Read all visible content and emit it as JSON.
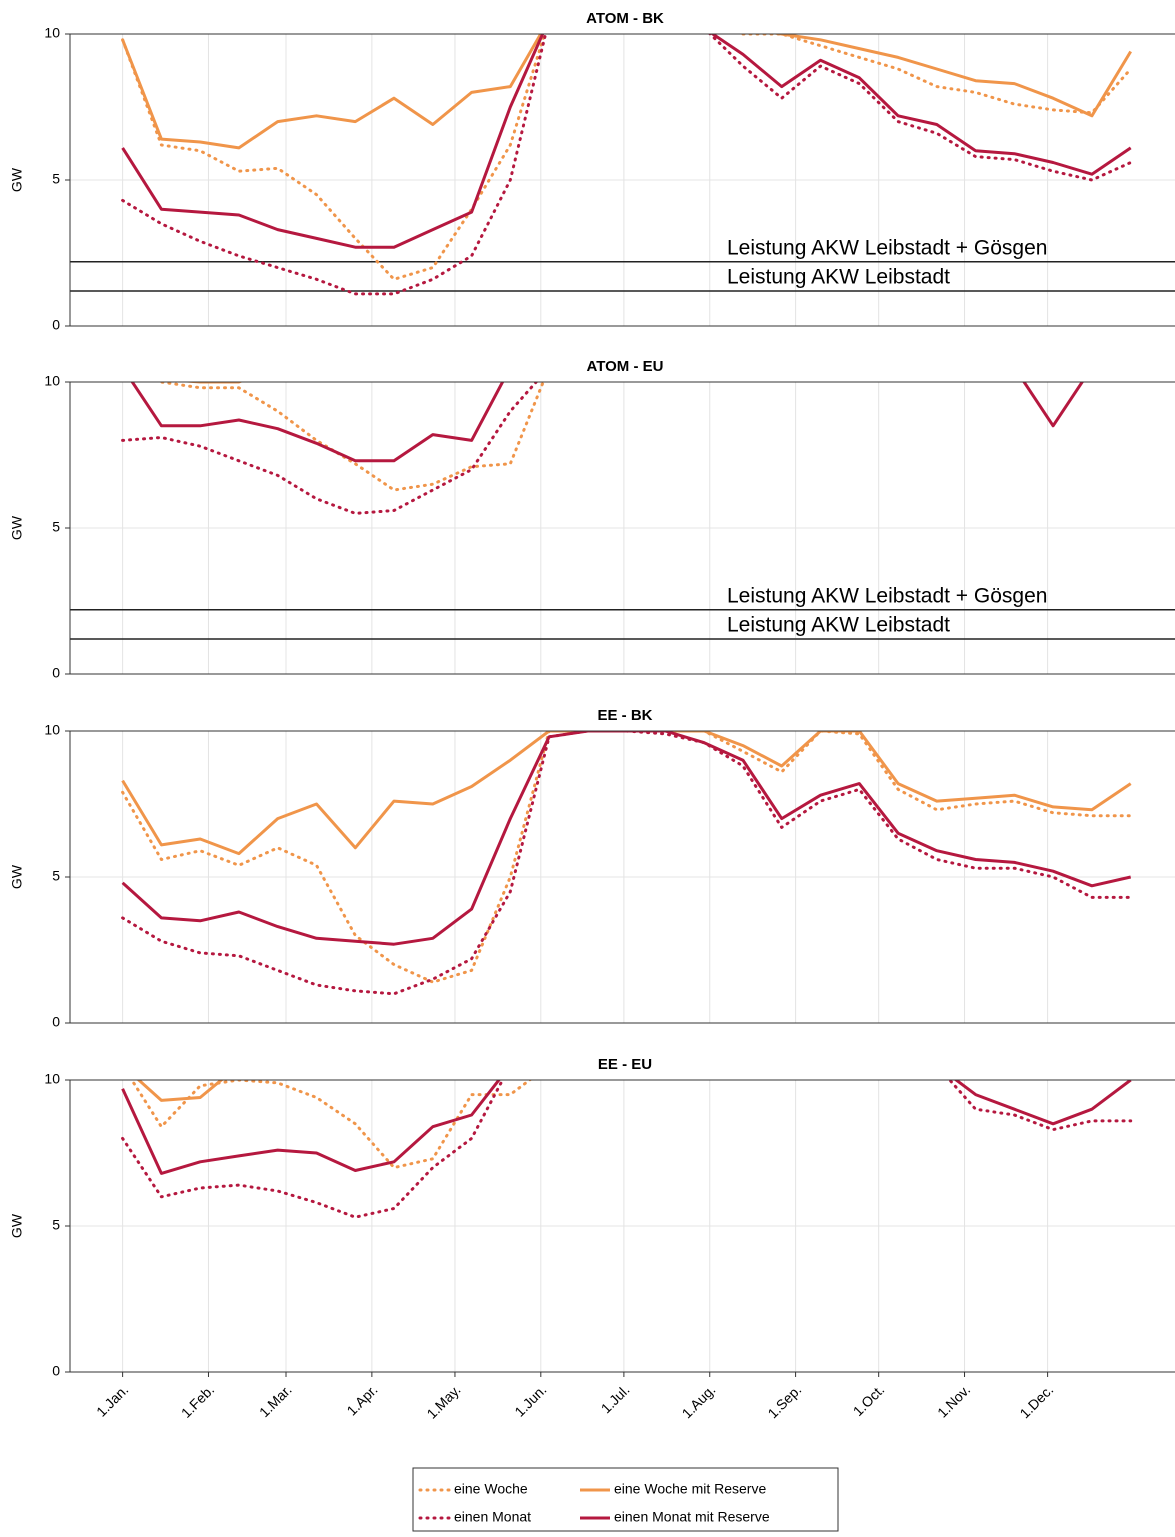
{
  "chart_data": [
    {
      "type": "line",
      "title": "ATOM - BK",
      "ylabel": "GW",
      "grid": true,
      "x": [
        0,
        14,
        28,
        42,
        56,
        70,
        84,
        98,
        112,
        126,
        140,
        154,
        168,
        182,
        196,
        210,
        224,
        238,
        252,
        266,
        280,
        294,
        308,
        322,
        336,
        350,
        364
      ],
      "xlim": [
        -19,
        380
      ],
      "ylim": [
        0,
        10
      ],
      "yticks": [
        0,
        5,
        10
      ],
      "reference_lines": [
        {
          "value": 2.2,
          "label": "Leistung AKW Leibstadt + Gösgen"
        },
        {
          "value": 1.2,
          "label": "Leistung AKW Leibstadt"
        }
      ],
      "series": [
        {
          "color": "#f0954a",
          "style": "dotted",
          "values": [
            9.8,
            6.2,
            6.0,
            5.3,
            5.4,
            4.5,
            3.0,
            1.6,
            2.0,
            4.0,
            6.2,
            10.5,
            null,
            null,
            null,
            null,
            10.0,
            10.0,
            9.6,
            9.2,
            8.8,
            8.2,
            8.0,
            7.6,
            7.4,
            7.3,
            8.8
          ]
        },
        {
          "color": "#f0954a",
          "style": "solid",
          "values": [
            9.8,
            6.4,
            6.3,
            6.1,
            7.0,
            7.2,
            7.0,
            7.8,
            6.9,
            8.0,
            8.2,
            10.5,
            null,
            null,
            null,
            null,
            10.2,
            10.0,
            9.8,
            9.5,
            9.2,
            8.8,
            8.4,
            8.3,
            7.8,
            7.2,
            9.4
          ]
        },
        {
          "color": "#b5183f",
          "style": "dotted",
          "values": [
            4.3,
            3.5,
            2.9,
            2.4,
            2.0,
            1.6,
            1.1,
            1.1,
            1.6,
            2.4,
            5.0,
            10.5,
            null,
            null,
            null,
            10.2,
            8.9,
            7.8,
            8.9,
            8.3,
            7.0,
            6.6,
            5.8,
            5.7,
            5.3,
            5.0,
            5.6
          ]
        },
        {
          "color": "#b5183f",
          "style": "solid",
          "values": [
            6.1,
            4.0,
            3.9,
            3.8,
            3.3,
            3.0,
            2.7,
            2.7,
            3.3,
            3.9,
            7.5,
            10.5,
            null,
            null,
            null,
            10.2,
            9.3,
            8.2,
            9.1,
            8.5,
            7.2,
            6.9,
            6.0,
            5.9,
            5.6,
            5.2,
            6.1
          ]
        }
      ]
    },
    {
      "type": "line",
      "title": "ATOM - EU",
      "ylabel": "GW",
      "grid": true,
      "x": [
        0,
        14,
        28,
        42,
        56,
        70,
        84,
        98,
        112,
        126,
        140,
        154,
        168,
        182,
        196,
        210,
        224,
        238,
        252,
        266,
        280,
        294,
        308,
        322,
        336,
        350,
        364
      ],
      "xlim": [
        -19,
        380
      ],
      "ylim": [
        0,
        10
      ],
      "yticks": [
        0,
        5,
        10
      ],
      "reference_lines": [
        {
          "value": 2.2,
          "label": "Leistung AKW Leibstadt + Gösgen"
        },
        {
          "value": 1.2,
          "label": "Leistung AKW Leibstadt"
        }
      ],
      "series": [
        {
          "color": "#f0954a",
          "style": "dotted",
          "values": [
            10.5,
            10.0,
            9.8,
            9.8,
            9.0,
            8.0,
            7.2,
            6.3,
            6.5,
            7.1,
            7.2,
            10.5,
            null,
            null,
            null,
            null,
            null,
            null,
            null,
            null,
            null,
            null,
            null,
            null,
            null,
            null,
            null
          ]
        },
        {
          "color": "#f0954a",
          "style": "solid",
          "values": [
            10.5,
            10.1,
            10.0,
            10.0,
            10.5,
            null,
            null,
            null,
            null,
            null,
            null,
            null,
            null,
            null,
            null,
            null,
            null,
            null,
            null,
            null,
            null,
            null,
            null,
            null,
            null,
            null,
            null
          ]
        },
        {
          "color": "#b5183f",
          "style": "dotted",
          "values": [
            8.0,
            8.1,
            7.8,
            7.3,
            6.8,
            6.0,
            5.5,
            5.6,
            6.3,
            7.0,
            9.0,
            10.5,
            null,
            null,
            null,
            null,
            null,
            null,
            null,
            null,
            null,
            null,
            null,
            null,
            null,
            null,
            null
          ]
        },
        {
          "color": "#b5183f",
          "style": "solid",
          "values": [
            10.5,
            8.5,
            8.5,
            8.7,
            8.4,
            7.9,
            7.3,
            7.3,
            8.2,
            8.0,
            10.5,
            null,
            null,
            null,
            null,
            null,
            null,
            null,
            null,
            null,
            null,
            null,
            null,
            10.5,
            8.5,
            10.5,
            null
          ]
        }
      ]
    },
    {
      "type": "line",
      "title": "EE - BK",
      "ylabel": "GW",
      "grid": true,
      "x": [
        0,
        14,
        28,
        42,
        56,
        70,
        84,
        98,
        112,
        126,
        140,
        154,
        168,
        182,
        196,
        210,
        224,
        238,
        252,
        266,
        280,
        294,
        308,
        322,
        336,
        350,
        364
      ],
      "xlim": [
        -19,
        380
      ],
      "ylim": [
        0,
        10
      ],
      "yticks": [
        0,
        5,
        10
      ],
      "series": [
        {
          "color": "#f0954a",
          "style": "dotted",
          "values": [
            7.9,
            5.6,
            5.9,
            5.4,
            6.0,
            5.4,
            3.0,
            2.0,
            1.4,
            1.8,
            5.0,
            10.0,
            10.0,
            10.0,
            10.0,
            10.0,
            9.3,
            8.6,
            10.0,
            9.9,
            8.0,
            7.3,
            7.5,
            7.6,
            7.2,
            7.1,
            7.1
          ]
        },
        {
          "color": "#f0954a",
          "style": "solid",
          "values": [
            8.3,
            6.1,
            6.3,
            5.8,
            7.0,
            7.5,
            6.0,
            7.6,
            7.5,
            8.1,
            9.0,
            10.0,
            10.0,
            10.0,
            10.0,
            10.0,
            9.5,
            8.8,
            10.0,
            10.0,
            8.2,
            7.6,
            7.7,
            7.8,
            7.4,
            7.3,
            8.2
          ]
        },
        {
          "color": "#b5183f",
          "style": "dotted",
          "values": [
            3.6,
            2.8,
            2.4,
            2.3,
            1.8,
            1.3,
            1.1,
            1.0,
            1.5,
            2.2,
            4.5,
            9.8,
            10.0,
            10.0,
            9.9,
            9.6,
            8.8,
            6.7,
            7.6,
            8.0,
            6.3,
            5.6,
            5.3,
            5.3,
            5.0,
            4.3,
            4.3
          ]
        },
        {
          "color": "#b5183f",
          "style": "solid",
          "values": [
            4.8,
            3.6,
            3.5,
            3.8,
            3.3,
            2.9,
            2.8,
            2.7,
            2.9,
            3.9,
            7.0,
            9.8,
            10.0,
            10.0,
            10.0,
            9.6,
            9.0,
            7.0,
            7.8,
            8.2,
            6.5,
            5.9,
            5.6,
            5.5,
            5.2,
            4.7,
            5.0
          ]
        }
      ]
    },
    {
      "type": "line",
      "title": "EE - EU",
      "ylabel": "GW",
      "grid": true,
      "x": [
        0,
        14,
        28,
        42,
        56,
        70,
        84,
        98,
        112,
        126,
        140,
        154,
        168,
        182,
        196,
        210,
        224,
        238,
        252,
        266,
        280,
        294,
        308,
        322,
        336,
        350,
        364
      ],
      "xlim": [
        -19,
        380
      ],
      "ylim": [
        0,
        10
      ],
      "yticks": [
        0,
        5,
        10
      ],
      "xticks": [
        {
          "value": 0,
          "label": "1.Jan."
        },
        {
          "value": 31,
          "label": "1.Feb."
        },
        {
          "value": 59,
          "label": "1.Mar."
        },
        {
          "value": 90,
          "label": "1.Apr."
        },
        {
          "value": 120,
          "label": "1.May."
        },
        {
          "value": 151,
          "label": "1.Jun."
        },
        {
          "value": 181,
          "label": "1.Jul."
        },
        {
          "value": 212,
          "label": "1.Aug."
        },
        {
          "value": 243,
          "label": "1.Sep."
        },
        {
          "value": 273,
          "label": "1.Oct."
        },
        {
          "value": 304,
          "label": "1.Nov."
        },
        {
          "value": 334,
          "label": "1.Dec."
        }
      ],
      "series": [
        {
          "name": "eine Woche",
          "color": "#f0954a",
          "style": "dotted",
          "values": [
            10.5,
            8.4,
            9.8,
            10.0,
            9.9,
            9.4,
            8.5,
            7.0,
            7.3,
            9.5,
            9.5,
            10.5,
            null,
            null,
            null,
            null,
            null,
            null,
            null,
            null,
            null,
            null,
            null,
            null,
            null,
            null,
            null
          ]
        },
        {
          "name": "eine Woche mit Reserve",
          "color": "#f0954a",
          "style": "solid",
          "values": [
            10.5,
            9.3,
            9.4,
            10.5,
            null,
            null,
            null,
            null,
            null,
            null,
            null,
            null,
            null,
            null,
            null,
            null,
            null,
            null,
            null,
            null,
            null,
            null,
            null,
            null,
            null,
            null,
            null
          ]
        },
        {
          "name": "einen Monat",
          "color": "#b5183f",
          "style": "dotted",
          "values": [
            8.0,
            6.0,
            6.3,
            6.4,
            6.2,
            5.8,
            5.3,
            5.6,
            7.0,
            8.0,
            10.5,
            null,
            null,
            null,
            null,
            null,
            null,
            null,
            null,
            null,
            null,
            10.5,
            9.0,
            8.8,
            8.3,
            8.6,
            8.6
          ]
        },
        {
          "name": "einen Monat mit Reserve",
          "color": "#b5183f",
          "style": "solid",
          "values": [
            9.7,
            6.8,
            7.2,
            7.4,
            7.6,
            7.5,
            6.9,
            7.2,
            8.4,
            8.8,
            10.5,
            null,
            null,
            null,
            null,
            null,
            null,
            null,
            null,
            null,
            null,
            10.5,
            9.5,
            9.0,
            8.5,
            9.0,
            10.0
          ]
        }
      ]
    }
  ]
}
